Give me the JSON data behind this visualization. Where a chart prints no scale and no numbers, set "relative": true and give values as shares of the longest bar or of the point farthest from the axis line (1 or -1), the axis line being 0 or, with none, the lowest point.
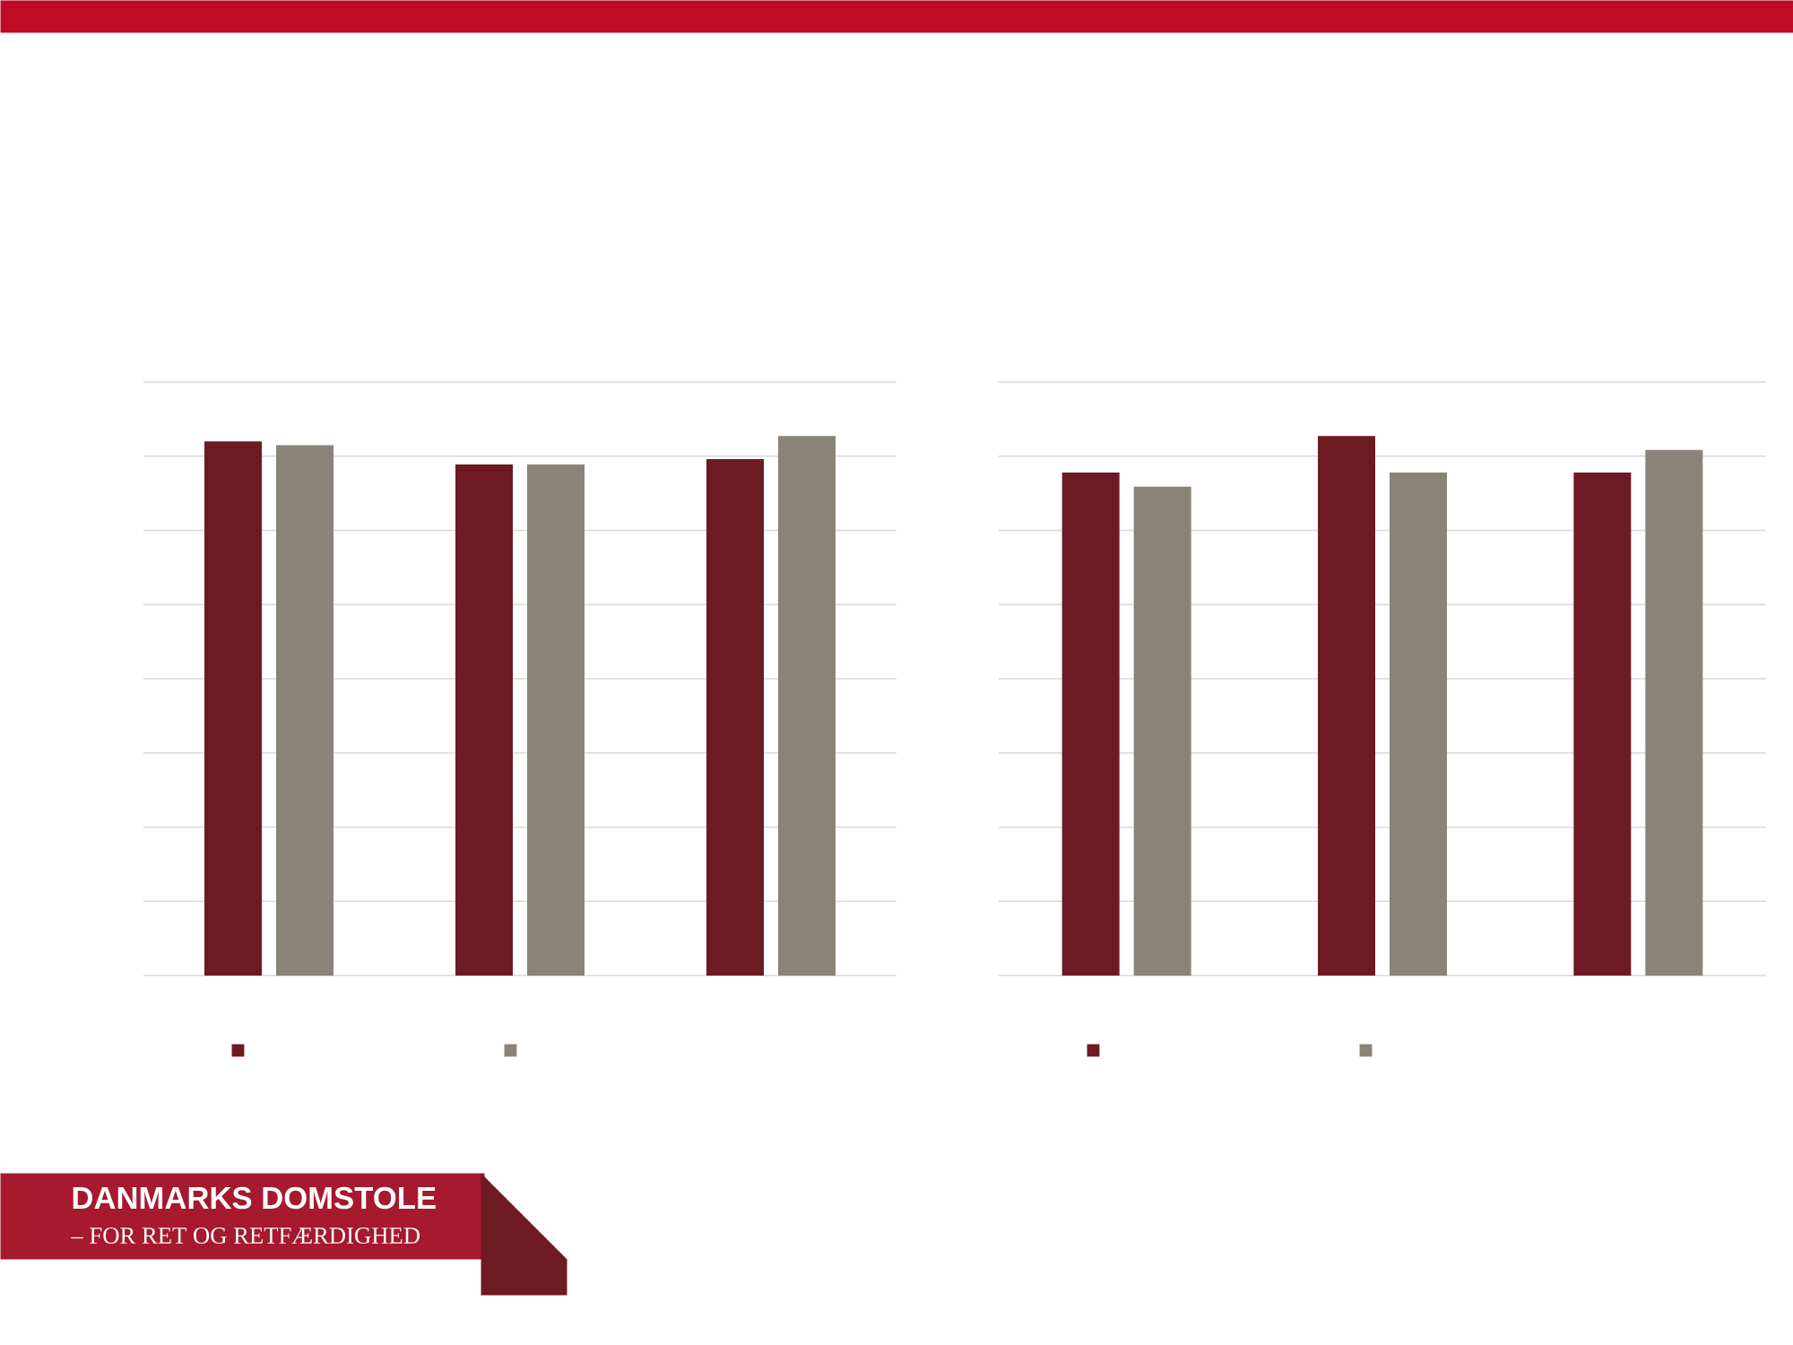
{
  "chart_data": [
    {
      "type": "bar",
      "relative": true,
      "categories": [
        null,
        null,
        null
      ],
      "grid": "y",
      "series": [
        {
          "color": "#6d1a22",
          "values": [
            0.99,
            0.947,
            0.957
          ]
        },
        {
          "color": "#8a8378",
          "values": [
            0.983,
            0.947,
            1
          ]
        }
      ],
      "annotations": [
        "DANMARKS DOMSTOLE",
        "– FOR RET OG RETFÆRDIGHED"
      ]
    },
    {
      "type": "bar",
      "relative": true,
      "categories": [
        null,
        null,
        null
      ],
      "grid": "y",
      "series": [
        {
          "color": "#6d1a22",
          "values": [
            0.932,
            1,
            0.932
          ]
        },
        {
          "color": "#8a8378",
          "values": [
            0.906,
            0.932,
            0.974
          ]
        }
      ]
    }
  ]
}
